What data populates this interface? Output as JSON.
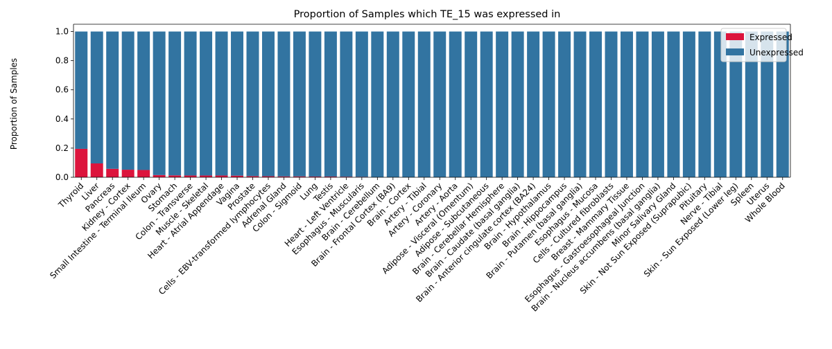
{
  "chart_data": {
    "type": "bar",
    "stacked": true,
    "title": "Proportion of Samples which TE_15 was expressed in",
    "xlabel": "",
    "ylabel": "Proportion of Samples",
    "ylim": [
      0,
      1.05
    ],
    "yticks": [
      0.0,
      0.2,
      0.4,
      0.6,
      0.8,
      1.0
    ],
    "ytick_labels": [
      "0.0",
      "0.2",
      "0.4",
      "0.6",
      "0.8",
      "1.0"
    ],
    "grid": false,
    "legend": {
      "placement": "top-right",
      "entries": [
        "Expressed",
        "Unexpressed"
      ]
    },
    "colors": {
      "Expressed": "#dc143c",
      "Unexpressed": "#3274a1"
    },
    "categories": [
      "Thyroid",
      "Liver",
      "Pancreas",
      "Kidney - Cortex",
      "Small Intestine - Terminal Ileum",
      "Ovary",
      "Stomach",
      "Colon - Transverse",
      "Muscle - Skeletal",
      "Heart - Atrial Appendage",
      "Vagina",
      "Prostate",
      "Cells - EBV-transformed lymphocytes",
      "Adrenal Gland",
      "Colon - Sigmoid",
      "Lung",
      "Testis",
      "Heart - Left Ventricle",
      "Esophagus - Muscularis",
      "Brain - Cerebellum",
      "Brain - Frontal Cortex (BA9)",
      "Brain - Cortex",
      "Artery - Tibial",
      "Artery - Coronary",
      "Artery - Aorta",
      "Adipose - Visceral (Omentum)",
      "Adipose - Subcutaneous",
      "Brain - Cerebellar Hemisphere",
      "Brain - Caudate (basal ganglia)",
      "Brain - Anterior cingulate cortex (BA24)",
      "Brain - Hypothalamus",
      "Brain - Hippocampus",
      "Brain - Putamen (basal ganglia)",
      "Esophagus - Mucosa",
      "Cells - Cultured fibroblasts",
      "Breast - Mammary Tissue",
      "Esophagus - Gastroesophageal Junction",
      "Brain - Nucleus accumbens (basal ganglia)",
      "Minor Salivary Gland",
      "Skin - Not Sun Exposed (Suprapubic)",
      "Pituitary",
      "Nerve - Tibial",
      "Skin - Sun Exposed (Lower leg)",
      "Spleen",
      "Uterus",
      "Whole Blood"
    ],
    "series": [
      {
        "name": "Expressed",
        "values": [
          0.195,
          0.095,
          0.058,
          0.052,
          0.05,
          0.015,
          0.013,
          0.012,
          0.012,
          0.012,
          0.011,
          0.008,
          0.007,
          0.006,
          0.006,
          0.005,
          0.005,
          0.004,
          0.003,
          0,
          0,
          0,
          0,
          0,
          0,
          0,
          0,
          0,
          0,
          0,
          0,
          0,
          0,
          0,
          0,
          0,
          0,
          0,
          0,
          0,
          0,
          0,
          0,
          0,
          0,
          0
        ]
      },
      {
        "name": "Unexpressed",
        "values": [
          0.805,
          0.905,
          0.942,
          0.948,
          0.95,
          0.985,
          0.987,
          0.988,
          0.988,
          0.988,
          0.989,
          0.992,
          0.993,
          0.994,
          0.994,
          0.995,
          0.995,
          0.996,
          0.997,
          1,
          1,
          1,
          1,
          1,
          1,
          1,
          1,
          1,
          1,
          1,
          1,
          1,
          1,
          1,
          1,
          1,
          1,
          1,
          1,
          1,
          1,
          1,
          1,
          1,
          1,
          1
        ]
      }
    ]
  }
}
